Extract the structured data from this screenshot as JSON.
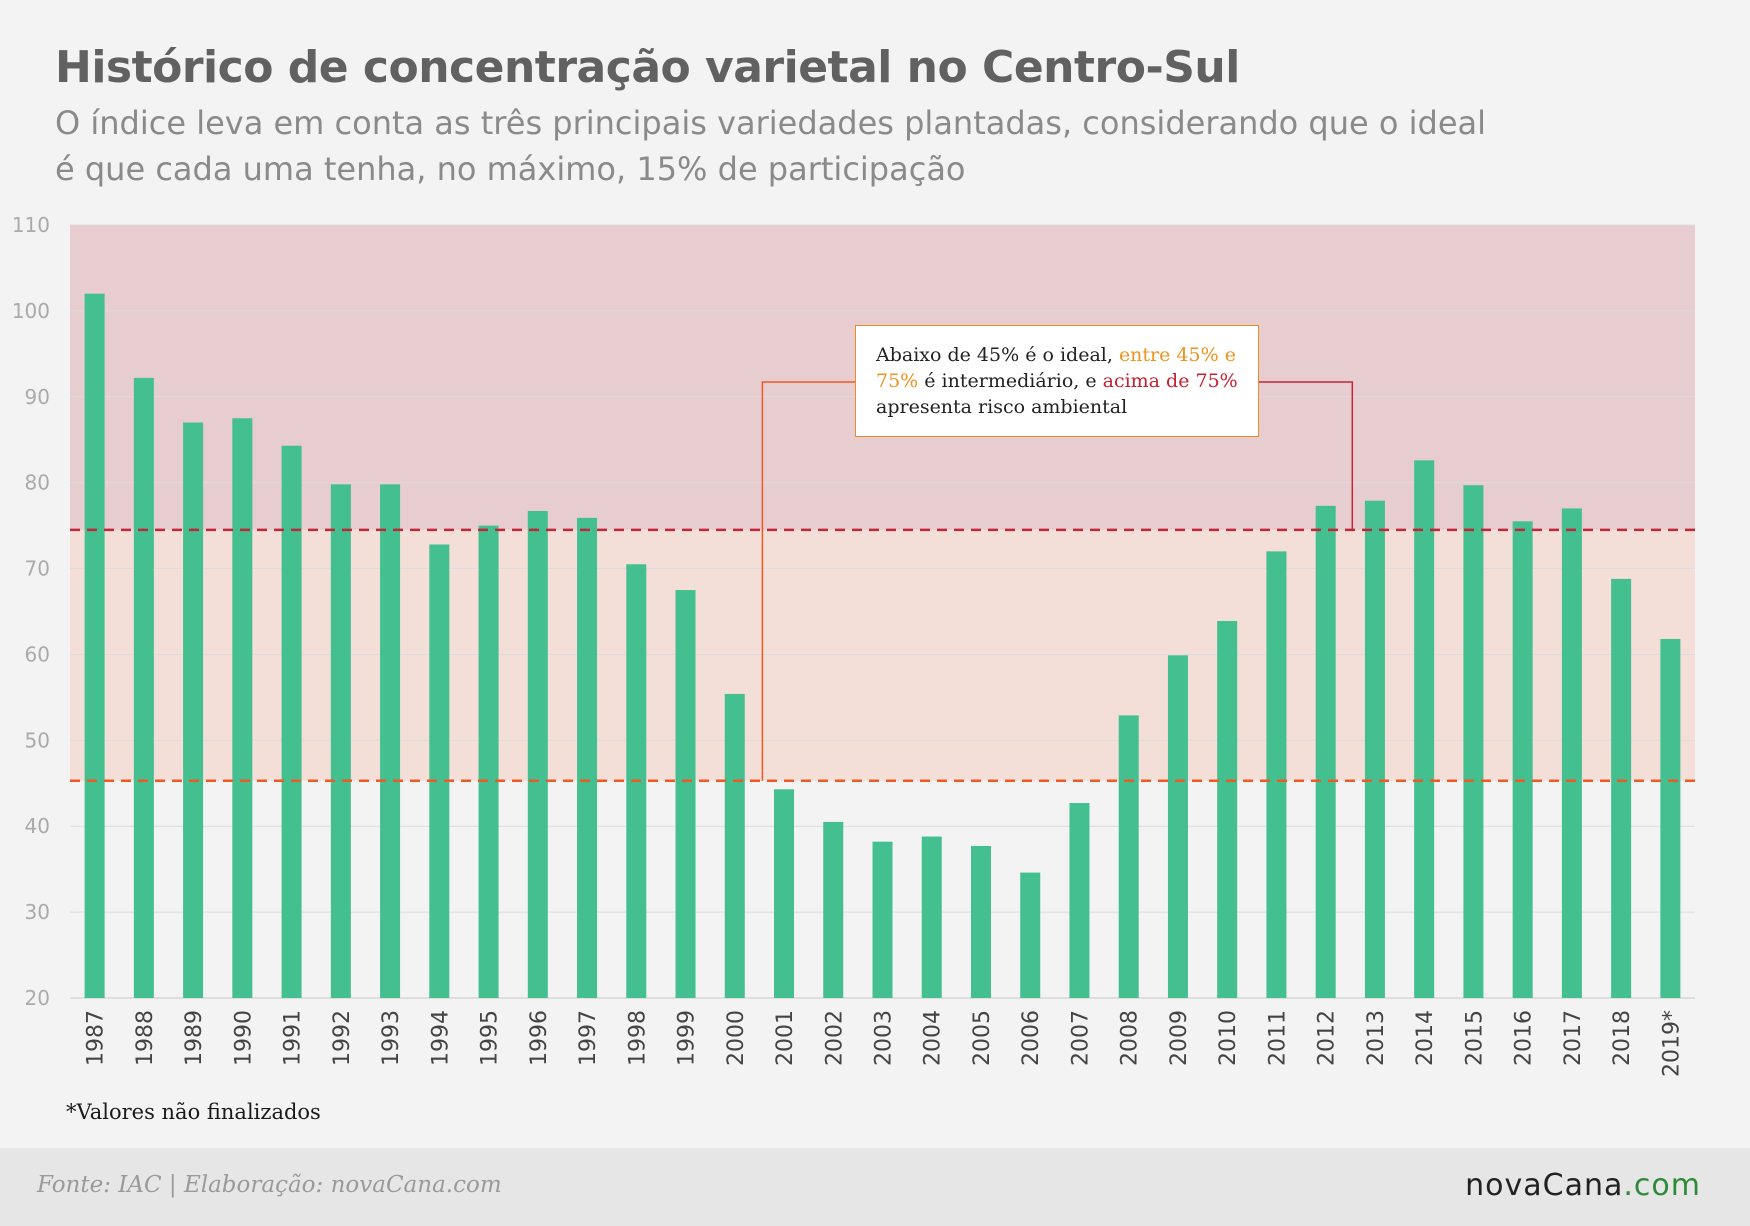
{
  "title": "Histórico de concentração varietal no Centro-Sul",
  "subtitle": "O índice leva em conta as três principais variedades plantadas, considerando que o ideal é que cada uma tenha, no máximo, 15% de participação",
  "footnote": "*Valores não finalizados",
  "footer": {
    "source": "Fonte: IAC | Elaboração: novaCana.com",
    "logo_main": "novaCana",
    "logo_suffix": ".com"
  },
  "annotation": {
    "part1": "Abaixo de 45% é o ideal, ",
    "part2": "entre 45% e 75%",
    "part3": " é intermediário, e ",
    "part4": "acima de 75%",
    "part5": " apresenta risco ambiental"
  },
  "colors": {
    "bar": "#44bf8f",
    "zone_high": "#e7ccd0",
    "zone_mid": "#f3dfd7",
    "line_75": "#c0283a",
    "line_45": "#ee5a24",
    "grid": "#dcdcdc",
    "tick_text": "#aaaaaa"
  },
  "chart_data": {
    "type": "bar",
    "categories": [
      "1987",
      "1988",
      "1989",
      "1990",
      "1991",
      "1992",
      "1993",
      "1994",
      "1995",
      "1996",
      "1997",
      "1998",
      "1999",
      "2000",
      "2001",
      "2002",
      "2003",
      "2004",
      "2005",
      "2006",
      "2007",
      "2008",
      "2009",
      "2010",
      "2011",
      "2012",
      "2013",
      "2014",
      "2015",
      "2016",
      "2017",
      "2018",
      "2019*"
    ],
    "values": [
      102,
      92.2,
      87,
      87.5,
      84.3,
      79.8,
      79.8,
      72.8,
      75,
      76.7,
      75.9,
      70.5,
      67.5,
      55.4,
      44.3,
      40.5,
      38.2,
      38.8,
      37.7,
      34.6,
      42.7,
      52.9,
      59.9,
      63.9,
      72,
      77.3,
      77.9,
      82.6,
      79.7,
      75.5,
      77,
      68.8,
      61.8
    ],
    "ylim": [
      20,
      110
    ],
    "yticks": [
      20,
      30,
      40,
      50,
      60,
      70,
      80,
      90,
      100,
      110
    ],
    "reference_lines": [
      {
        "value": 74.5,
        "style": "dashed"
      },
      {
        "value": 45.3,
        "style": "dashed"
      }
    ],
    "zones": [
      {
        "from": 74.5,
        "to": 110
      },
      {
        "from": 45.3,
        "to": 74.5
      }
    ],
    "grid": true,
    "legend": "none"
  }
}
